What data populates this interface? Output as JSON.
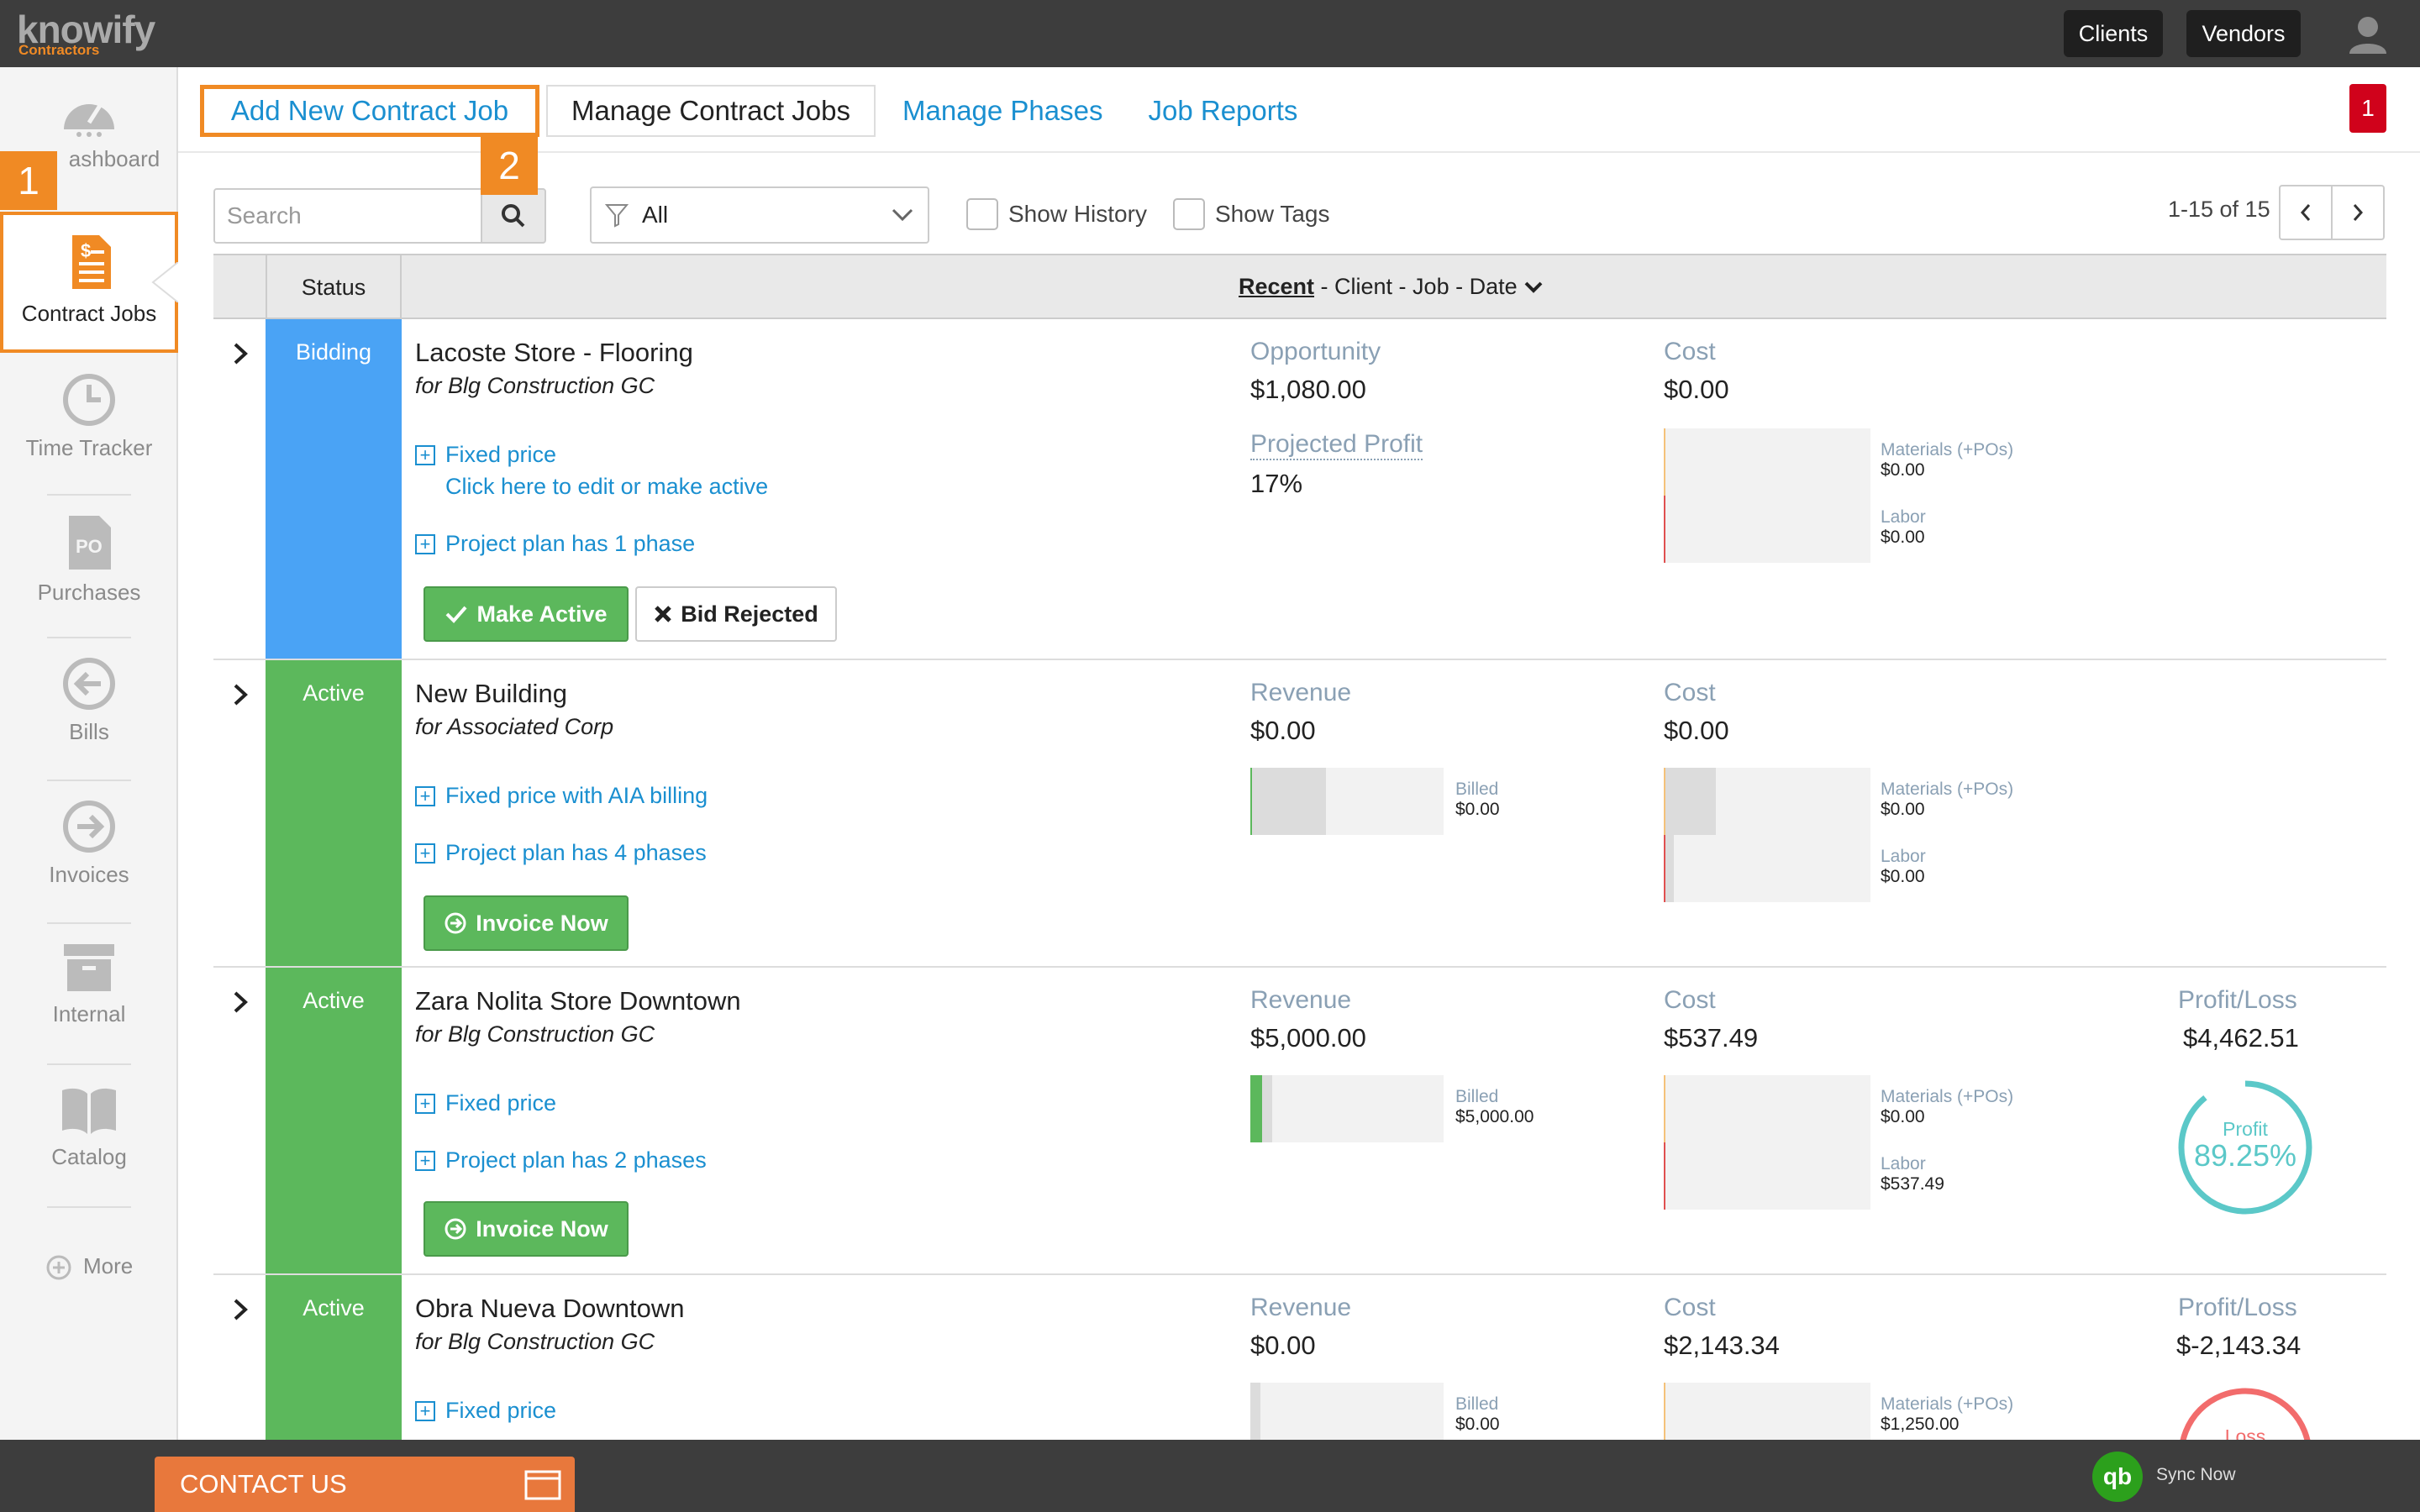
{
  "app": {
    "logo": "knowify",
    "logo_sub": "Contractors"
  },
  "topbar": {
    "clients": "Clients",
    "vendors": "Vendors"
  },
  "sidebar": {
    "items": [
      {
        "label": "ashboard"
      },
      {
        "label": "Contract Jobs"
      },
      {
        "label": "Time Tracker"
      },
      {
        "label": "Purchases"
      },
      {
        "label": "Bills"
      },
      {
        "label": "Invoices"
      },
      {
        "label": "Internal"
      },
      {
        "label": "Catalog"
      },
      {
        "label": "More"
      }
    ],
    "step_badge": "1"
  },
  "tabs": {
    "add": "Add New Contract Job",
    "manage": "Manage Contract Jobs",
    "phases": "Manage Phases",
    "reports": "Job Reports",
    "step_badge": "2",
    "notification_count": "1"
  },
  "toolbar": {
    "search_placeholder": "Search",
    "filter_value": "All",
    "show_history": "Show History",
    "show_tags": "Show Tags",
    "paging": "1-15 of 15"
  },
  "table": {
    "status_header": "Status",
    "sort_active": "Recent",
    "sort_rest": " - Client - Job - Date"
  },
  "rows": [
    {
      "status": "Bidding",
      "title": "Lacoste Store - Flooring",
      "client": "for Blg Construction GC",
      "link1": "Fixed price",
      "sublink": "Click here to edit or make active",
      "link2": "Project plan has 1 phase",
      "btn1": "Make Active",
      "btn2": "Bid Rejected",
      "m1_label": "Opportunity",
      "m1_value": "$1,080.00",
      "m2_label": "Projected Profit",
      "m2_value": "17%",
      "cost_label": "Cost",
      "cost_value": "$0.00",
      "mat_label": "Materials (+POs)",
      "mat_value": "$0.00",
      "labor_label": "Labor",
      "labor_value": "$0.00"
    },
    {
      "status": "Active",
      "title": "New Building",
      "client": "for Associated Corp",
      "link1": "Fixed price with AIA billing",
      "link2": "Project plan has 4 phases",
      "btn1": "Invoice Now",
      "m1_label": "Revenue",
      "m1_value": "$0.00",
      "billed_label": "Billed",
      "billed_value": "$0.00",
      "cost_label": "Cost",
      "cost_value": "$0.00",
      "mat_label": "Materials (+POs)",
      "mat_value": "$0.00",
      "labor_label": "Labor",
      "labor_value": "$0.00"
    },
    {
      "status": "Active",
      "title": "Zara Nolita Store Downtown",
      "client": "for Blg Construction GC",
      "link1": "Fixed price",
      "link2": "Project plan has 2 phases",
      "btn1": "Invoice Now",
      "m1_label": "Revenue",
      "m1_value": "$5,000.00",
      "billed_label": "Billed",
      "billed_value": "$5,000.00",
      "cost_label": "Cost",
      "cost_value": "$537.49",
      "mat_label": "Materials (+POs)",
      "mat_value": "$0.00",
      "labor_label": "Labor",
      "labor_value": "$537.49",
      "pl_label": "Profit/Loss",
      "pl_value": "$4,462.51",
      "ring_label": "Profit",
      "ring_value": "89.25%"
    },
    {
      "status": "Active",
      "title": "Obra Nueva Downtown",
      "client": "for Blg Construction GC",
      "link1": "Fixed price",
      "m1_label": "Revenue",
      "m1_value": "$0.00",
      "billed_label": "Billed",
      "billed_value": "$0.00",
      "cost_label": "Cost",
      "cost_value": "$2,143.34",
      "mat_label": "Materials (+POs)",
      "mat_value": "$1,250.00",
      "pl_label": "Profit/Loss",
      "pl_value": "$-2,143.34",
      "ring_label": "Loss"
    }
  ],
  "footer": {
    "contact": "CONTACT US",
    "sync": "Sync Now",
    "qb_icon": "qb"
  },
  "colors": {
    "accent": "#f08a24",
    "link": "#1a8fd0",
    "bidding": "#4aa3f5",
    "active": "#5cb85c",
    "profit_ring": "#5bc8c8",
    "loss_ring": "#f26c6c"
  }
}
